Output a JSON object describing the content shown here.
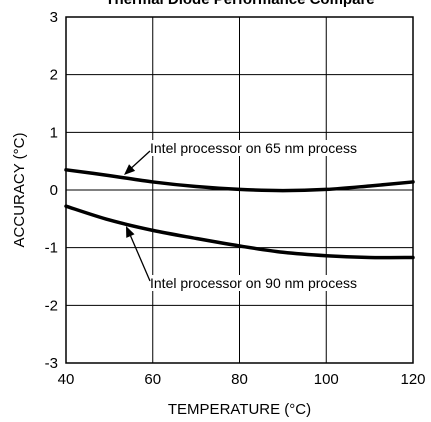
{
  "chart_data": {
    "type": "line",
    "title": "Thermal Diode Performance Compare",
    "xlabel": "TEMPERATURE (°C)",
    "ylabel": "ACCURACY (°C)",
    "xlim": [
      40,
      120
    ],
    "ylim": [
      -3,
      3
    ],
    "xticks": [
      40,
      60,
      80,
      100,
      120
    ],
    "yticks": [
      3,
      2,
      1,
      0,
      -1,
      -2,
      -3
    ],
    "grid": true,
    "series": [
      {
        "name": "Intel processor on 65 nm process",
        "x": [
          40,
          50,
          60,
          70,
          80,
          90,
          100,
          110,
          120
        ],
        "y": [
          0.35,
          0.25,
          0.14,
          0.06,
          0.01,
          -0.01,
          0.01,
          0.07,
          0.14
        ]
      },
      {
        "name": "Intel processor on 90 nm process",
        "x": [
          40,
          50,
          60,
          70,
          80,
          90,
          100,
          110,
          120
        ],
        "y": [
          -0.28,
          -0.52,
          -0.7,
          -0.84,
          -0.97,
          -1.08,
          -1.14,
          -1.17,
          -1.17
        ]
      }
    ],
    "annotations": [
      {
        "text": "Intel processor on 65 nm process",
        "series": 0
      },
      {
        "text": "Intel processor on 90 nm process",
        "series": 1
      }
    ]
  }
}
